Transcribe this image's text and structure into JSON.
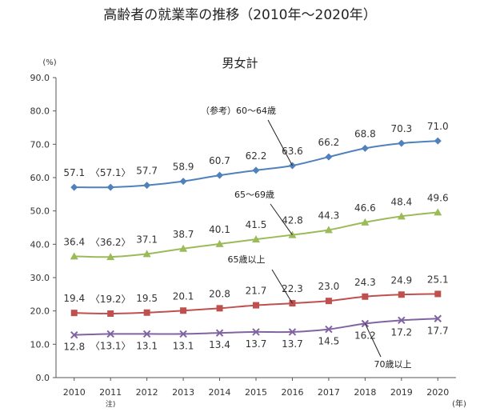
{
  "chart_data": {
    "type": "line",
    "title": "高齢者の就業率の推移（2010年～2020年）",
    "subtitle": "男女計",
    "ylabel": "(%)",
    "xlabel": "(年)",
    "ylim": [
      0,
      90
    ],
    "yticks": [
      "0.0",
      "10.0",
      "20.0",
      "30.0",
      "40.0",
      "50.0",
      "60.0",
      "70.0",
      "80.0",
      "90.0"
    ],
    "categories": [
      "2010",
      "2011",
      "2012",
      "2013",
      "2014",
      "2015",
      "2016",
      "2017",
      "2018",
      "2019",
      "2020"
    ],
    "category_notes": {
      "2011": "注)"
    },
    "grid": false,
    "series": [
      {
        "name": "（参考）60～64歳",
        "color": "#4f81bd",
        "marker": "diamond",
        "values": [
          57.1,
          57.1,
          57.7,
          58.9,
          60.7,
          62.2,
          63.6,
          66.2,
          68.8,
          70.3,
          71.0
        ],
        "labels": [
          "57.1",
          "〈57.1〉",
          "57.7",
          "58.9",
          "60.7",
          "62.2",
          "63.6",
          "66.2",
          "68.8",
          "70.3",
          "71.0"
        ]
      },
      {
        "name": "65～69歳",
        "color": "#9bbb59",
        "marker": "triangle",
        "values": [
          36.4,
          36.2,
          37.1,
          38.7,
          40.1,
          41.5,
          42.8,
          44.3,
          46.6,
          48.4,
          49.6
        ],
        "labels": [
          "36.4",
          "〈36.2〉",
          "37.1",
          "38.7",
          "40.1",
          "41.5",
          "42.8",
          "44.3",
          "46.6",
          "48.4",
          "49.6"
        ]
      },
      {
        "name": "65歳以上",
        "color": "#c0504d",
        "marker": "square",
        "values": [
          19.4,
          19.2,
          19.5,
          20.1,
          20.8,
          21.7,
          22.3,
          23.0,
          24.3,
          24.9,
          25.1
        ],
        "labels": [
          "19.4",
          "〈19.2〉",
          "19.5",
          "20.1",
          "20.8",
          "21.7",
          "22.3",
          "23.0",
          "24.3",
          "24.9",
          "25.1"
        ]
      },
      {
        "name": "70歳以上",
        "color": "#8064a2",
        "marker": "x",
        "values": [
          12.8,
          13.1,
          13.1,
          13.1,
          13.4,
          13.7,
          13.7,
          14.5,
          16.2,
          17.2,
          17.7
        ],
        "labels": [
          "12.8",
          "〈13.1〉",
          "13.1",
          "13.1",
          "13.4",
          "13.7",
          "13.7",
          "14.5",
          "16.2",
          "17.2",
          "17.7"
        ]
      }
    ]
  }
}
